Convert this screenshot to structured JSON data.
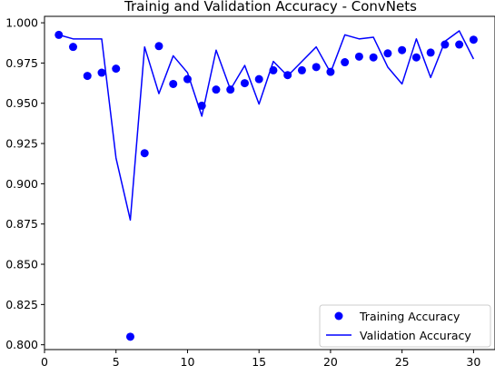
{
  "chart_data": {
    "type": "line",
    "title": "Trainig and Validation Accuracy - ConvNets",
    "xlabel": "",
    "ylabel": "",
    "xlim": [
      0,
      31.5
    ],
    "ylim": [
      0.797,
      1.004
    ],
    "xticks": [
      0,
      5,
      10,
      15,
      20,
      25,
      30
    ],
    "yticks": [
      0.8,
      0.825,
      0.85,
      0.875,
      0.9,
      0.925,
      0.95,
      0.975,
      1.0
    ],
    "ytick_labels": [
      "0.800",
      "0.825",
      "0.850",
      "0.875",
      "0.900",
      "0.925",
      "0.950",
      "0.975",
      "1.000"
    ],
    "grid": false,
    "legend_position": "lower-right",
    "x": [
      1,
      2,
      3,
      4,
      5,
      6,
      7,
      8,
      9,
      10,
      11,
      12,
      13,
      14,
      15,
      16,
      17,
      18,
      19,
      20,
      21,
      22,
      23,
      24,
      25,
      26,
      27,
      28,
      29,
      30
    ],
    "series": [
      {
        "name": "Training Accuracy",
        "style": "markers",
        "color": "#0000ff",
        "values": [
          0.9925,
          0.985,
          0.967,
          0.969,
          0.9715,
          0.805,
          0.919,
          0.9855,
          0.962,
          0.965,
          0.9485,
          0.9585,
          0.9585,
          0.9625,
          0.965,
          0.9705,
          0.9675,
          0.9705,
          0.9725,
          0.9695,
          0.9755,
          0.979,
          0.9785,
          0.981,
          0.983,
          0.9785,
          0.9815,
          0.9865,
          0.9865,
          0.9895
        ]
      },
      {
        "name": "Validation Accuracy",
        "style": "line",
        "color": "#0000ff",
        "values": [
          0.9925,
          0.99,
          0.99,
          0.99,
          0.916,
          0.8775,
          0.985,
          0.956,
          0.9795,
          0.969,
          0.942,
          0.983,
          0.9585,
          0.9735,
          0.9495,
          0.976,
          0.967,
          0.976,
          0.985,
          0.969,
          0.9925,
          0.99,
          0.991,
          0.9725,
          0.962,
          0.99,
          0.966,
          0.9885,
          0.995,
          0.9775
        ]
      }
    ]
  }
}
